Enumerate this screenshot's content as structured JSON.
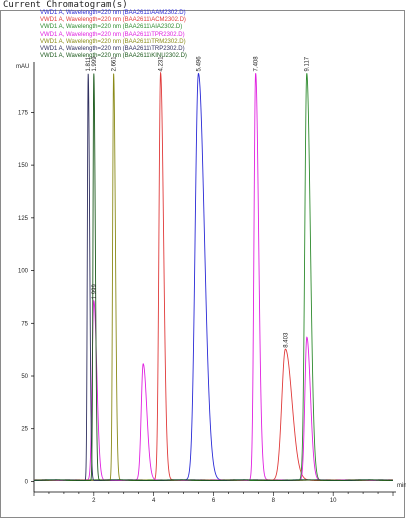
{
  "window": {
    "title": "Current Chromatogram(s)"
  },
  "chart_data": {
    "type": "line",
    "title": "",
    "xlabel": "min",
    "ylabel": "mAU",
    "xlim": [
      0,
      12.1
    ],
    "ylim": [
      -5,
      197
    ],
    "xticks": [
      2,
      4,
      6,
      8,
      10
    ],
    "yticks": [
      0,
      25,
      50,
      75,
      100,
      125,
      150,
      175
    ],
    "legend_position": "top-left",
    "series": [
      {
        "name": "VWD1 A, Wavelength=220 nm (BAA2611\\AAM2302.D)",
        "color": "#2a2ad6",
        "peaks": [
          {
            "rt": 5.496,
            "label": "5.496",
            "height": 193,
            "width": 0.2
          }
        ]
      },
      {
        "name": "VWD1 A, Wavelength=220 nm (BAA2611\\ACM2302.D)",
        "color": "#e03a3a",
        "peaks": [
          {
            "rt": 4.231,
            "label": "4.231",
            "height": 193,
            "width": 0.1
          },
          {
            "rt": 8.403,
            "label": "8.403",
            "height": 62,
            "width": 0.22
          }
        ]
      },
      {
        "name": "VWD1 A, Wavelength=220 nm (BAA2611\\AIA2302.D)",
        "color": "#2e8b2e",
        "peaks": [
          {
            "rt": 9.117,
            "label": "9.117",
            "height": 193,
            "width": 0.12
          }
        ]
      },
      {
        "name": "VWD1 A, Wavelength=220 nm (BAA2611\\TPR2302.D)",
        "color": "#e020e0",
        "peaks": [
          {
            "rt": 1.999,
            "label": "1.999",
            "height": 85,
            "width": 0.1
          },
          {
            "rt": 7.408,
            "label": "7.408",
            "height": 193,
            "width": 0.1
          },
          {
            "rt": 3.65,
            "label": "",
            "height": 55,
            "width": 0.12
          },
          {
            "rt": 9.12,
            "label": "",
            "height": 68,
            "width": 0.12
          }
        ]
      },
      {
        "name": "VWD1 A, Wavelength=220 nm (BAA2611\\TRM2302.D)",
        "color": "#8a8a18",
        "peaks": [
          {
            "rt": 2.661,
            "label": "2.661",
            "height": 193,
            "width": 0.06
          }
        ]
      },
      {
        "name": "VWD1 A, Wavelength=220 nm (BAA2611\\TRP2302.D)",
        "color": "#303060",
        "peaks": [
          {
            "rt": 1.811,
            "label": "1.811",
            "height": 193,
            "width": 0.05
          }
        ]
      },
      {
        "name": "VWD1 A, Wavelength=220 nm (BAA2611\\KINU2302.D)",
        "color": "#1c5a1c",
        "peaks": [
          {
            "rt": 1.999,
            "label": "1.999",
            "height": 193,
            "width": 0.05
          }
        ]
      }
    ]
  }
}
